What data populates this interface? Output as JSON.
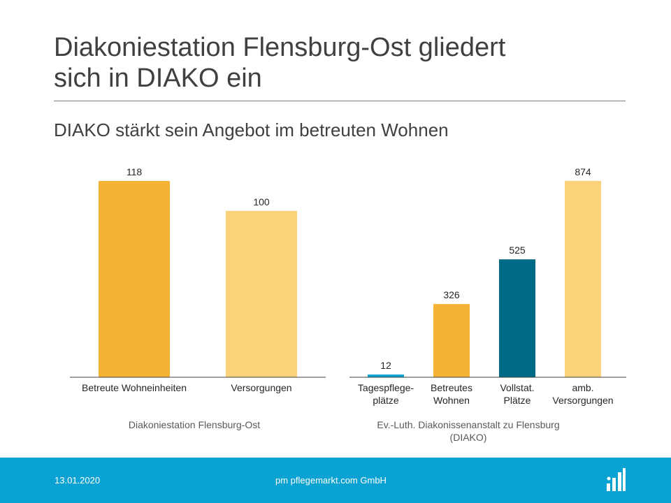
{
  "slide": {
    "title_line1": "Diakoniestation Flensburg-Ost gliedert",
    "title_line2": "sich in DIAKO ein",
    "subtitle": "DIAKO stärkt sein Angebot im betreuten Wohnen"
  },
  "footer": {
    "date": "13.01.2020",
    "company": "pm pflegemarkt.com GmbH",
    "logo_icon": "bar-chart-logo-icon",
    "background_color": "#0aa2d2"
  },
  "chart_data": [
    {
      "type": "bar",
      "title": "Diakoniestation Flensburg-Ost",
      "categories": [
        [
          "Betreute Wohneinheiten"
        ],
        [
          "Versorgungen"
        ]
      ],
      "values": [
        118,
        100
      ],
      "colors": [
        "#f5b335",
        "#fbd27a"
      ],
      "ylim": [
        0,
        118
      ]
    },
    {
      "type": "bar",
      "title": [
        "Ev.-Luth.  Diakonissenanstalt zu Flensburg",
        "(DIAKO)"
      ],
      "categories": [
        [
          "Tagespflege-",
          "plätze"
        ],
        [
          "Betreutes",
          "Wohnen"
        ],
        [
          "Vollstat.",
          "Plätze"
        ],
        [
          "amb.",
          "Versorgungen"
        ]
      ],
      "values": [
        12,
        326,
        525,
        874
      ],
      "colors": [
        "#0aa2d2",
        "#f5b335",
        "#006b86",
        "#fbd27a"
      ],
      "ylim": [
        0,
        874
      ]
    }
  ]
}
